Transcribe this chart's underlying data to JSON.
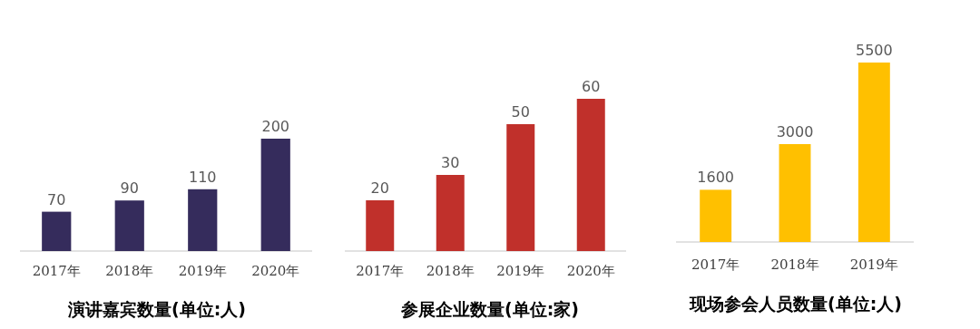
{
  "chart_data": [
    {
      "type": "bar",
      "title": "演讲嘉宾数量(单位:人)",
      "categories": [
        "2017年",
        "2018年",
        "2019年",
        "2020年"
      ],
      "values": [
        70,
        90,
        110,
        200
      ],
      "color": "#352c5c",
      "data_labels": true
    },
    {
      "type": "bar",
      "title": "参展企业数量(单位:家)",
      "categories": [
        "2017年",
        "2018年",
        "2019年",
        "2020年"
      ],
      "values": [
        20,
        30,
        50,
        60
      ],
      "color": "#c0302b",
      "data_labels": true
    },
    {
      "type": "bar",
      "title": "现场参会人员数量(单位:人)",
      "categories": [
        "2017年",
        "2018年",
        "2019年"
      ],
      "values": [
        1600,
        3000,
        5500
      ],
      "color": "#ffc000",
      "data_labels": true
    }
  ]
}
